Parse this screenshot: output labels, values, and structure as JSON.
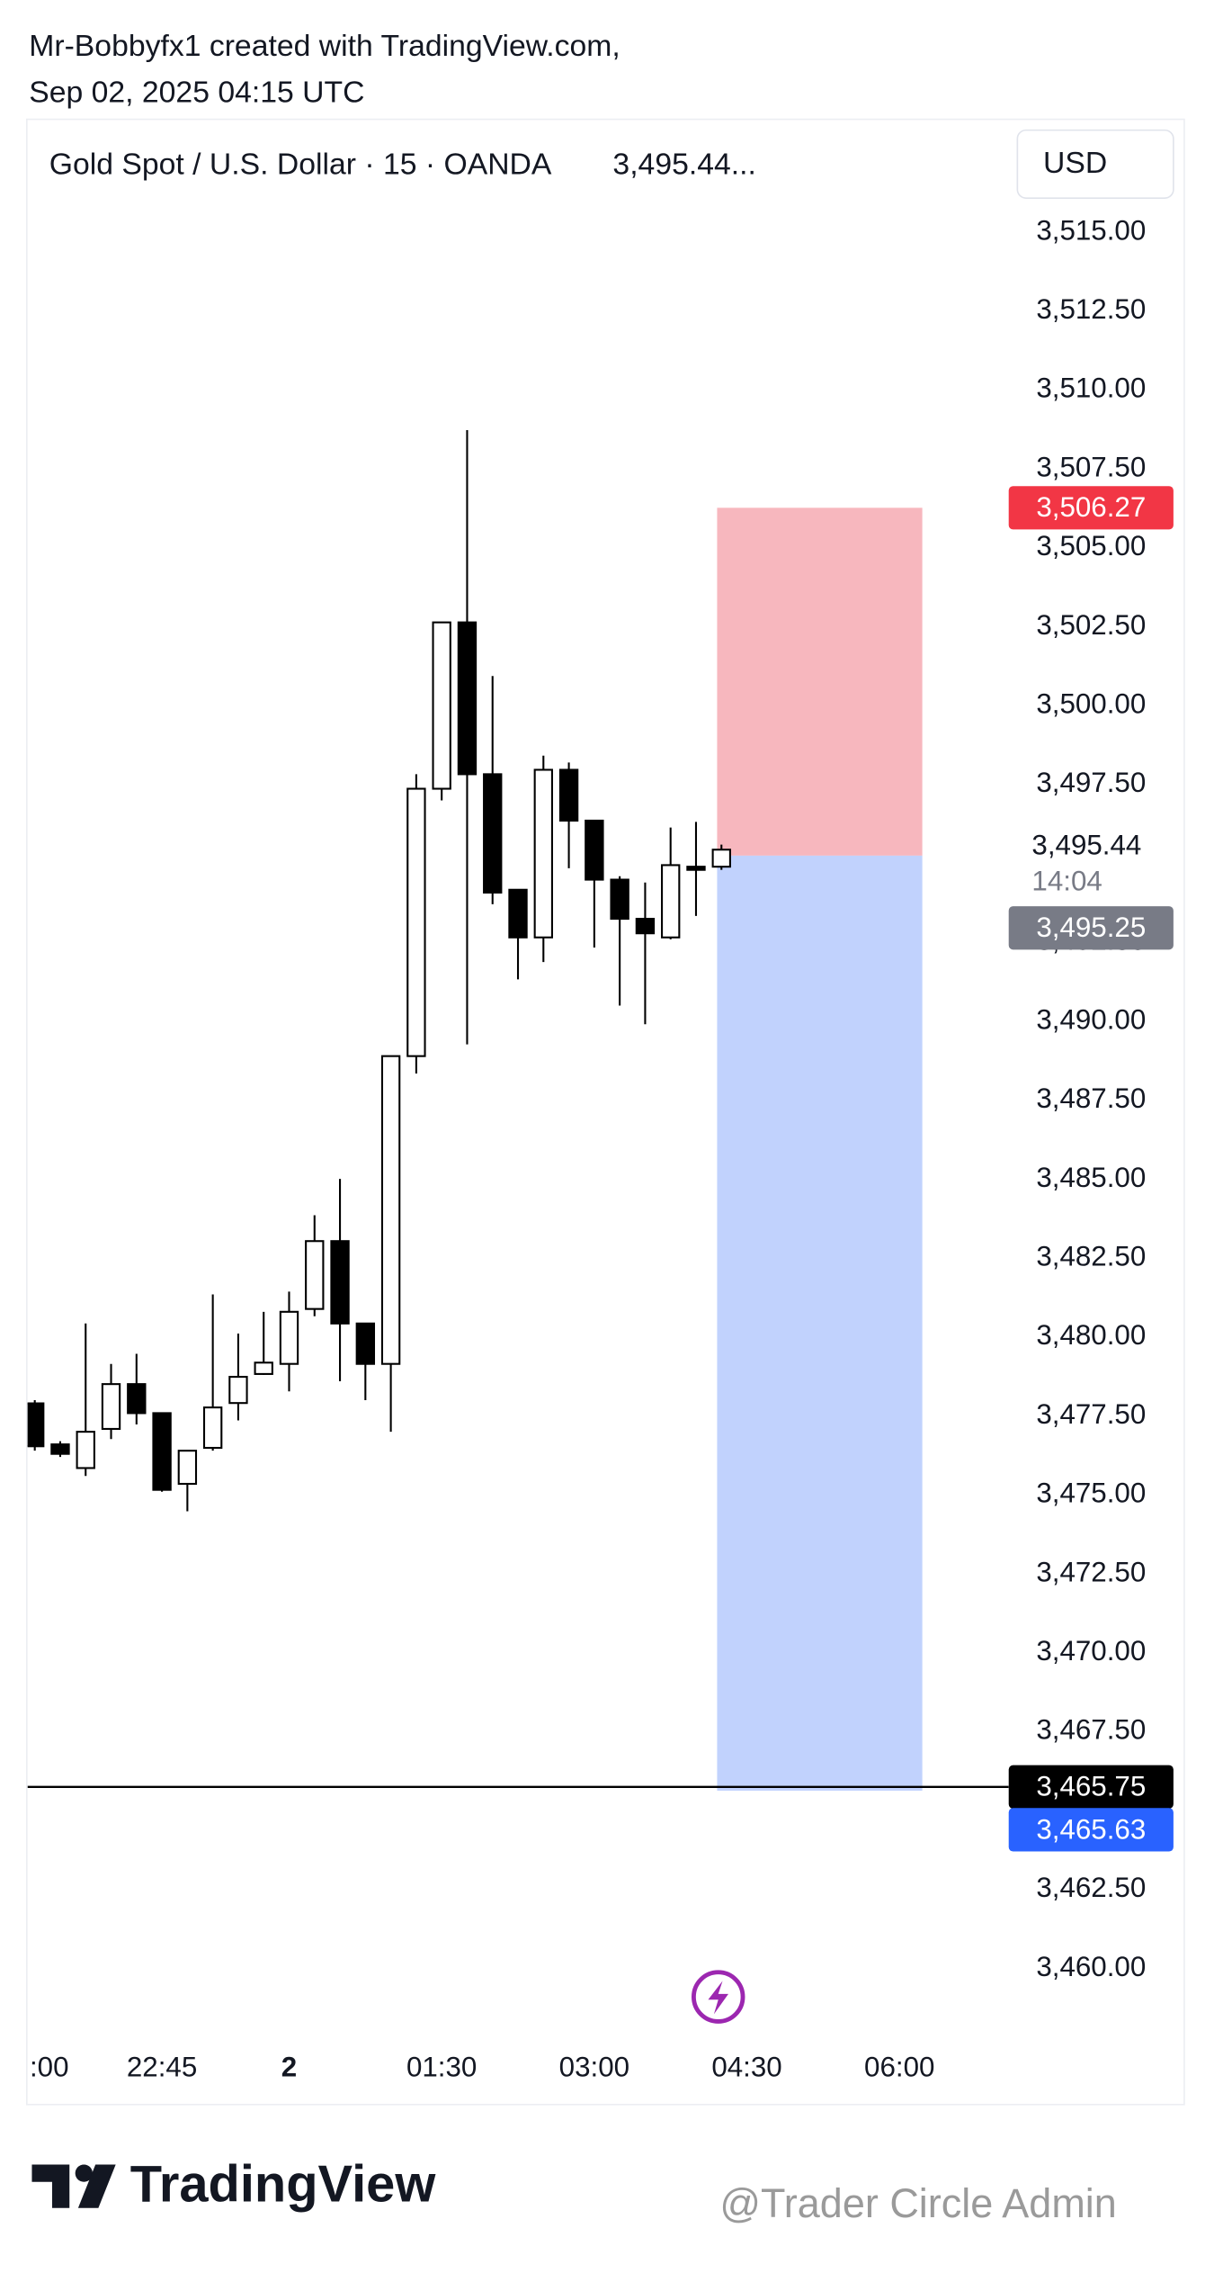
{
  "header": {
    "line1": "Mr-Bobbyfx1 created with TradingView.com,",
    "line2": "Sep 02, 2025 04:15 UTC"
  },
  "chart_data": {
    "type": "candlestick",
    "title": "Gold Spot / U.S. Dollar · 15 · OANDA",
    "title_price": "3,495.44...",
    "currency": "USD",
    "up_color": "#ffffff",
    "down_color": "#000000",
    "categories": [
      ":00",
      null,
      null,
      null,
      null,
      "22:45",
      null,
      null,
      null,
      null,
      "2",
      null,
      null,
      null,
      null,
      null,
      "01:30",
      null,
      null,
      null,
      null,
      null,
      "03:00",
      null,
      null,
      null,
      null,
      null,
      "04:30",
      null,
      null,
      null,
      null,
      null,
      "06:00"
    ],
    "open": [
      3477.9,
      3476.6,
      3475.85,
      3477.09,
      3478.51,
      3477.59,
      3475.35,
      3476.49,
      3477.91,
      3478.83,
      3479.15,
      3480.89,
      3483.04,
      3480.43,
      3479.15,
      3488.9,
      3497.37,
      3502.64,
      3497.83,
      3494.17,
      3492.66,
      3497.97,
      3496.36,
      3494.49,
      3493.25,
      3492.66,
      3494.9,
      3494.9,
      null,
      null,
      null,
      null,
      null,
      null,
      null
    ],
    "high": [
      3478.0,
      3476.7,
      3480.43,
      3479.15,
      3479.47,
      3477.6,
      3476.4,
      3481.35,
      3480.11,
      3480.8,
      3481.44,
      3483.86,
      3485.01,
      3480.43,
      3488.9,
      3497.83,
      3502.64,
      3508.73,
      3500.94,
      3494.17,
      3498.42,
      3498.2,
      3496.36,
      3494.6,
      3494.4,
      3496.14,
      3496.32,
      3495.6,
      null,
      null,
      null,
      null,
      null,
      null,
      null
    ],
    "low": [
      3476.4,
      3476.2,
      3475.6,
      3476.77,
      3477.23,
      3475.1,
      3474.48,
      3476.4,
      3477.36,
      3478.8,
      3478.28,
      3480.66,
      3478.6,
      3478.0,
      3477.0,
      3488.35,
      3497.0,
      3489.27,
      3493.71,
      3491.33,
      3491.88,
      3494.85,
      3492.34,
      3490.5,
      3489.91,
      3492.6,
      3493.34,
      3494.8,
      null,
      null,
      null,
      null,
      null,
      null,
      null
    ],
    "close": [
      3476.54,
      3476.3,
      3477.0,
      3478.51,
      3477.59,
      3475.16,
      3476.4,
      3477.77,
      3478.74,
      3479.19,
      3480.8,
      3483.04,
      3480.43,
      3479.15,
      3488.9,
      3497.37,
      3502.64,
      3497.83,
      3494.08,
      3492.66,
      3497.97,
      3496.36,
      3494.49,
      3493.25,
      3492.79,
      3494.95,
      3494.8,
      3495.44,
      null,
      null,
      null,
      null,
      null,
      null,
      null
    ],
    "ylim": [
      3458,
      3518.6
    ],
    "yticks": [
      {
        "value": 3515,
        "label": "3,515.00"
      },
      {
        "value": 3512.5,
        "label": "3,512.50"
      },
      {
        "value": 3510,
        "label": "3,510.00"
      },
      {
        "value": 3507.5,
        "label": "3,507.50"
      },
      {
        "value": 3505,
        "label": "3,505.00"
      },
      {
        "value": 3502.5,
        "label": "3,502.50"
      },
      {
        "value": 3500,
        "label": "3,500.00"
      },
      {
        "value": 3497.5,
        "label": "3,497.50"
      },
      {
        "value": 3492.5,
        "label": "3,492.50"
      },
      {
        "value": 3490,
        "label": "3,490.00"
      },
      {
        "value": 3487.5,
        "label": "3,487.50"
      },
      {
        "value": 3485,
        "label": "3,485.00"
      },
      {
        "value": 3482.5,
        "label": "3,482.50"
      },
      {
        "value": 3480,
        "label": "3,480.00"
      },
      {
        "value": 3477.5,
        "label": "3,477.50"
      },
      {
        "value": 3475,
        "label": "3,475.00"
      },
      {
        "value": 3472.5,
        "label": "3,472.50"
      },
      {
        "value": 3470,
        "label": "3,470.00"
      },
      {
        "value": 3467.5,
        "label": "3,467.50"
      },
      {
        "value": 3462.5,
        "label": "3,462.50"
      },
      {
        "value": 3460,
        "label": "3,460.00"
      }
    ],
    "last_price": {
      "value": 3495.44,
      "label": "3,495.44"
    },
    "countdown": "14:04",
    "position": {
      "stop": {
        "value": 3506.27,
        "label": "3,506.27",
        "color": "#f23645"
      },
      "entry": {
        "value": 3495.25,
        "label": "3,495.25",
        "color": "#787b86"
      },
      "target": {
        "value": 3465.63,
        "label": "3,465.63",
        "color": "#2962ff"
      },
      "stop_zone_color": "#f7b7be",
      "target_zone_color": "#c1d2fd"
    },
    "hline": {
      "value": 3465.75,
      "label": "3,465.75",
      "color": "#000000"
    }
  },
  "footer": {
    "brand": "TradingView",
    "watermark": "@Trader Circle Admin"
  }
}
